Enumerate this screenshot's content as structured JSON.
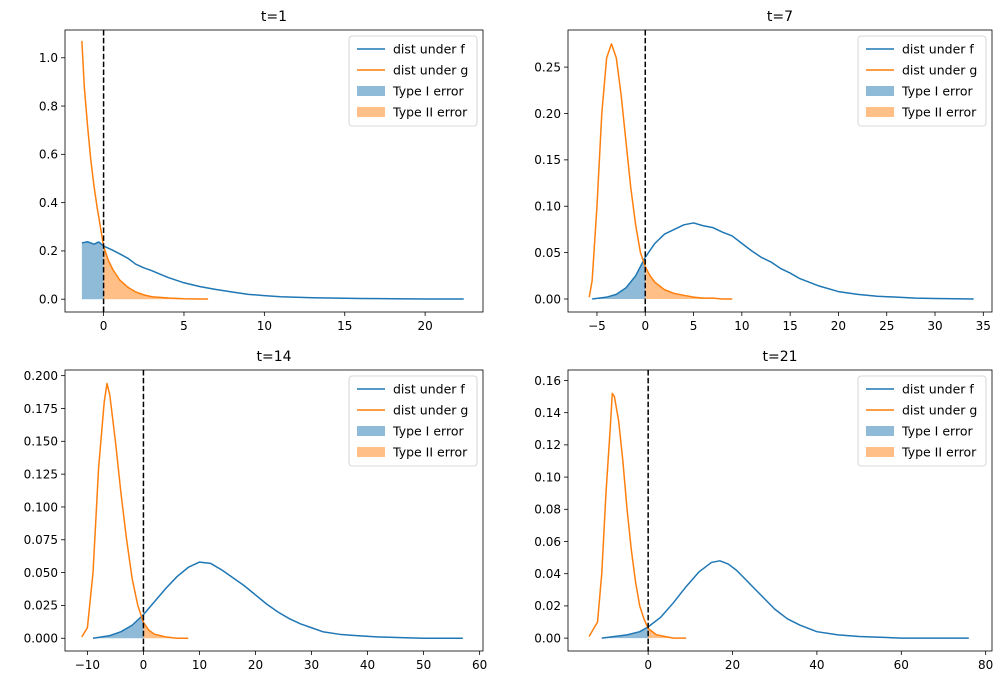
{
  "figure": {
    "background": "#ffffff"
  },
  "chart_data": [
    {
      "type": "line",
      "title": "t=1",
      "xlim": [
        -2.4,
        23.6
      ],
      "ylim": [
        -0.053,
        1.115
      ],
      "xticks": [
        0,
        5,
        10,
        15,
        20
      ],
      "xtick_labels": [
        "0",
        "5",
        "10",
        "15",
        "20"
      ],
      "yticks": [
        0.0,
        0.2,
        0.4,
        0.6,
        0.8,
        1.0
      ],
      "ytick_labels": [
        "0.0",
        "0.2",
        "0.4",
        "0.6",
        "0.8",
        "1.0"
      ],
      "threshold_x": 0,
      "legend_position": "upper right",
      "series": [
        {
          "name": "dist under f",
          "color": "#1f77b4",
          "x": [
            -1.35,
            -1,
            -0.6,
            -0.3,
            0,
            0.5,
            1,
            1.5,
            2,
            2.5,
            3,
            4,
            5,
            6,
            7,
            8,
            9,
            10,
            11,
            12,
            13,
            14,
            16,
            18,
            20,
            22.4
          ],
          "y": [
            0.233,
            0.238,
            0.228,
            0.237,
            0.22,
            0.205,
            0.188,
            0.17,
            0.145,
            0.13,
            0.118,
            0.09,
            0.068,
            0.052,
            0.04,
            0.03,
            0.02,
            0.015,
            0.01,
            0.008,
            0.006,
            0.005,
            0.003,
            0.002,
            0.001,
            0.001
          ]
        },
        {
          "name": "dist under g",
          "color": "#ff7f0e",
          "x": [
            -1.35,
            -1.2,
            -1,
            -0.8,
            -0.6,
            -0.4,
            -0.2,
            0,
            0.3,
            0.6,
            1,
            1.5,
            2,
            2.5,
            3,
            4,
            5,
            6,
            6.5
          ],
          "y": [
            1.07,
            0.88,
            0.72,
            0.58,
            0.47,
            0.38,
            0.3,
            0.22,
            0.16,
            0.12,
            0.08,
            0.05,
            0.03,
            0.018,
            0.01,
            0.005,
            0.002,
            0.001,
            0.001
          ]
        }
      ],
      "fills": [
        {
          "name": "Type I error",
          "color": "#1f77b4",
          "opacity": 0.5,
          "x": [
            -1.35,
            -1,
            -0.6,
            -0.3,
            0
          ],
          "y": [
            0.233,
            0.238,
            0.228,
            0.237,
            0.22
          ]
        },
        {
          "name": "Type II error",
          "color": "#ff7f0e",
          "opacity": 0.5,
          "x": [
            0,
            0.3,
            0.6,
            1,
            1.5,
            2,
            2.5,
            3,
            4,
            5,
            6,
            6.5
          ],
          "y": [
            0.22,
            0.16,
            0.12,
            0.08,
            0.05,
            0.03,
            0.018,
            0.01,
            0.005,
            0.002,
            0.001,
            0.001
          ]
        }
      ]
    },
    {
      "type": "line",
      "title": "t=7",
      "xlim": [
        -8.0,
        35.9
      ],
      "ylim": [
        -0.014,
        0.29
      ],
      "xticks": [
        -5,
        0,
        5,
        10,
        15,
        20,
        25,
        30,
        35
      ],
      "xtick_labels": [
        "−5",
        "0",
        "5",
        "10",
        "15",
        "20",
        "25",
        "30",
        "35"
      ],
      "yticks": [
        0.0,
        0.05,
        0.1,
        0.15,
        0.2,
        0.25
      ],
      "ytick_labels": [
        "0.00",
        "0.05",
        "0.10",
        "0.15",
        "0.20",
        "0.25"
      ],
      "threshold_x": 0,
      "legend_position": "upper right",
      "series": [
        {
          "name": "dist under f",
          "color": "#1f77b4",
          "x": [
            -5.5,
            -4,
            -3,
            -2,
            -1,
            0,
            1,
            2,
            3,
            4,
            5,
            6,
            7,
            8,
            9,
            10,
            11,
            12,
            13,
            14,
            15,
            16,
            17,
            18,
            20,
            22,
            24,
            26,
            28,
            30,
            34
          ],
          "y": [
            0.0,
            0.002,
            0.005,
            0.012,
            0.025,
            0.045,
            0.06,
            0.07,
            0.075,
            0.08,
            0.082,
            0.079,
            0.077,
            0.072,
            0.068,
            0.06,
            0.052,
            0.045,
            0.04,
            0.033,
            0.028,
            0.022,
            0.018,
            0.014,
            0.008,
            0.005,
            0.003,
            0.002,
            0.001,
            0.0005,
            0.0
          ]
        },
        {
          "name": "dist under g",
          "color": "#ff7f0e",
          "x": [
            -5.8,
            -5.5,
            -5,
            -4.5,
            -4,
            -3.5,
            -3,
            -2.5,
            -2,
            -1.5,
            -1,
            -0.5,
            0,
            0.5,
            1,
            2,
            3,
            4,
            5,
            6,
            7,
            8,
            9
          ],
          "y": [
            0.002,
            0.02,
            0.1,
            0.2,
            0.26,
            0.275,
            0.26,
            0.22,
            0.17,
            0.12,
            0.08,
            0.05,
            0.035,
            0.025,
            0.018,
            0.01,
            0.006,
            0.004,
            0.002,
            0.001,
            0.001,
            0.0,
            0.0
          ]
        }
      ],
      "fills": [
        {
          "name": "Type I error",
          "color": "#1f77b4",
          "opacity": 0.5,
          "x": [
            -5.5,
            -4,
            -3,
            -2,
            -1,
            0
          ],
          "y": [
            0.0,
            0.002,
            0.005,
            0.012,
            0.025,
            0.045
          ]
        },
        {
          "name": "Type II error",
          "color": "#ff7f0e",
          "opacity": 0.5,
          "x": [
            0,
            0.5,
            1,
            2,
            3,
            4,
            5,
            6,
            7,
            8,
            9
          ],
          "y": [
            0.035,
            0.025,
            0.018,
            0.01,
            0.006,
            0.004,
            0.002,
            0.001,
            0.001,
            0.0,
            0.0
          ]
        }
      ]
    },
    {
      "type": "line",
      "title": "t=14",
      "xlim": [
        -14.0,
        60.6
      ],
      "ylim": [
        -0.0097,
        0.2043
      ],
      "xticks": [
        -10,
        0,
        10,
        20,
        30,
        40,
        50,
        60
      ],
      "xtick_labels": [
        "−10",
        "0",
        "10",
        "20",
        "30",
        "40",
        "50",
        "60"
      ],
      "yticks": [
        0.0,
        0.025,
        0.05,
        0.075,
        0.1,
        0.125,
        0.15,
        0.175,
        0.2
      ],
      "ytick_labels": [
        "0.000",
        "0.025",
        "0.050",
        "0.075",
        "0.100",
        "0.125",
        "0.150",
        "0.175",
        "0.200"
      ],
      "threshold_x": 0,
      "legend_position": "upper right",
      "series": [
        {
          "name": "dist under f",
          "color": "#1f77b4",
          "x": [
            -9,
            -6,
            -4,
            -2,
            0,
            2,
            4,
            6,
            8,
            10,
            12,
            14,
            16,
            18,
            20,
            22,
            24,
            26,
            28,
            30,
            32,
            35,
            38,
            42,
            46,
            50,
            57
          ],
          "y": [
            0.0,
            0.002,
            0.005,
            0.01,
            0.018,
            0.028,
            0.038,
            0.047,
            0.054,
            0.058,
            0.057,
            0.052,
            0.046,
            0.04,
            0.033,
            0.026,
            0.02,
            0.015,
            0.011,
            0.008,
            0.005,
            0.003,
            0.002,
            0.001,
            0.0005,
            0.0,
            0.0
          ]
        },
        {
          "name": "dist under g",
          "color": "#ff7f0e",
          "x": [
            -11,
            -10,
            -9,
            -8,
            -7,
            -6.5,
            -6,
            -5,
            -4,
            -3,
            -2,
            -1,
            0,
            1,
            2,
            3,
            4,
            6,
            8
          ],
          "y": [
            0.001,
            0.008,
            0.05,
            0.13,
            0.18,
            0.194,
            0.185,
            0.15,
            0.11,
            0.075,
            0.045,
            0.025,
            0.012,
            0.006,
            0.003,
            0.002,
            0.001,
            0.0,
            0.0
          ]
        }
      ],
      "fills": [
        {
          "name": "Type I error",
          "color": "#1f77b4",
          "opacity": 0.5,
          "x": [
            -9,
            -6,
            -4,
            -2,
            0
          ],
          "y": [
            0.0,
            0.002,
            0.005,
            0.01,
            0.018
          ]
        },
        {
          "name": "Type II error",
          "color": "#ff7f0e",
          "opacity": 0.5,
          "x": [
            0,
            1,
            2,
            3,
            4,
            6,
            8
          ],
          "y": [
            0.012,
            0.006,
            0.003,
            0.002,
            0.001,
            0.0,
            0.0
          ]
        }
      ]
    },
    {
      "type": "line",
      "title": "t=21",
      "xlim": [
        -19.0,
        81.5
      ],
      "ylim": [
        -0.008,
        0.1665
      ],
      "xticks": [
        0,
        20,
        40,
        60,
        80
      ],
      "xtick_labels": [
        "0",
        "20",
        "40",
        "60",
        "80"
      ],
      "yticks": [
        0.0,
        0.02,
        0.04,
        0.06,
        0.08,
        0.1,
        0.12,
        0.14,
        0.16
      ],
      "ytick_labels": [
        "0.00",
        "0.02",
        "0.04",
        "0.06",
        "0.08",
        "0.10",
        "0.12",
        "0.14",
        "0.16"
      ],
      "threshold_x": 0,
      "legend_position": "upper right",
      "series": [
        {
          "name": "dist under f",
          "color": "#1f77b4",
          "x": [
            -11,
            -8,
            -5,
            -2,
            0,
            3,
            6,
            9,
            12,
            15,
            17,
            19,
            21,
            24,
            27,
            30,
            33,
            36,
            40,
            45,
            50,
            55,
            60,
            76
          ],
          "y": [
            0.0,
            0.001,
            0.002,
            0.004,
            0.007,
            0.013,
            0.022,
            0.032,
            0.041,
            0.047,
            0.048,
            0.046,
            0.042,
            0.034,
            0.026,
            0.018,
            0.012,
            0.008,
            0.004,
            0.002,
            0.001,
            0.0005,
            0.0,
            0.0
          ]
        },
        {
          "name": "dist under g",
          "color": "#ff7f0e",
          "x": [
            -14,
            -12,
            -11,
            -10,
            -9,
            -8.5,
            -8,
            -7,
            -6,
            -5,
            -4,
            -3,
            -2,
            -1,
            0,
            2,
            4,
            6,
            9
          ],
          "y": [
            0.001,
            0.01,
            0.04,
            0.09,
            0.13,
            0.152,
            0.15,
            0.135,
            0.11,
            0.08,
            0.055,
            0.035,
            0.02,
            0.012,
            0.006,
            0.002,
            0.001,
            0.0,
            0.0
          ]
        }
      ],
      "fills": [
        {
          "name": "Type I error",
          "color": "#1f77b4",
          "opacity": 0.5,
          "x": [
            -11,
            -8,
            -5,
            -2,
            0
          ],
          "y": [
            0.0,
            0.001,
            0.002,
            0.004,
            0.007
          ]
        },
        {
          "name": "Type II error",
          "color": "#ff7f0e",
          "opacity": 0.5,
          "x": [
            0,
            2,
            4,
            6,
            9
          ],
          "y": [
            0.006,
            0.002,
            0.001,
            0.0,
            0.0
          ]
        }
      ]
    }
  ]
}
